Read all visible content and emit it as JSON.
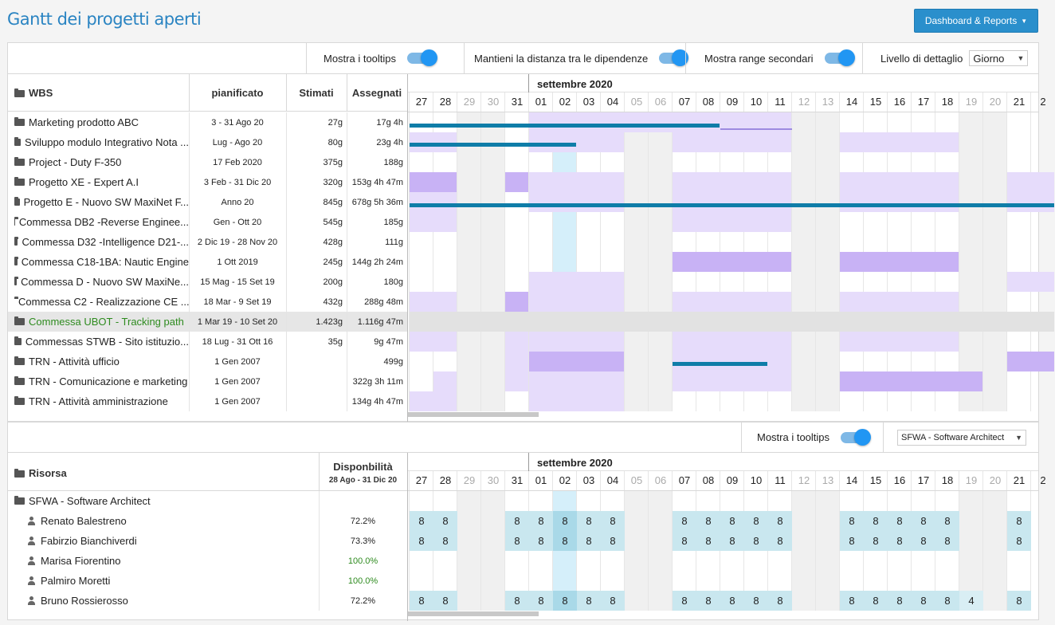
{
  "page_title": "Gantt dei progetti aperti",
  "dashboard_button": "Dashboard & Reports",
  "toolbar": {
    "tooltips_label": "Mostra i tooltips",
    "dependencies_label": "Mantieni la distanza tra le dipendenze",
    "secondary_range_label": "Mostra range secondari",
    "detail_level_label": "Livello di dettaglio",
    "detail_level_value": "Giorno"
  },
  "wbs_table": {
    "headers": {
      "wbs": "WBS",
      "planned": "pianificato",
      "estimated": "Stimati",
      "assigned": "Assegnati"
    },
    "rows": [
      {
        "name": "Marketing prodotto ABC",
        "planned": "3 - 31 Ago 20",
        "estimated": "27g",
        "assigned": "17g 4h"
      },
      {
        "name": "Sviluppo modulo Integrativo Nota ...",
        "planned": "Lug - Ago 20",
        "estimated": "80g",
        "assigned": "23g 4h"
      },
      {
        "name": "Project - Duty F-350",
        "planned": "17 Feb 2020",
        "estimated": "375g",
        "assigned": "188g"
      },
      {
        "name": "Progetto XE - Expert A.I",
        "planned": "3 Feb - 31 Dic 20",
        "estimated": "320g",
        "assigned": "153g 4h 47m"
      },
      {
        "name": "Progetto E - Nuovo SW MaxiNet F...",
        "planned": "Anno 20",
        "estimated": "845g",
        "assigned": "678g 5h 36m"
      },
      {
        "name": "Commessa DB2 -Reverse Enginee...",
        "planned": "Gen - Ott 20",
        "estimated": "545g",
        "assigned": "185g"
      },
      {
        "name": "Commessa D32 -Intelligence D21-...",
        "planned": "2 Dic 19 - 28 Nov 20",
        "estimated": "428g",
        "assigned": "111g"
      },
      {
        "name": "Commessa C18-1BA: Nautic Engine",
        "planned": "1 Ott 2019",
        "estimated": "245g",
        "assigned": "144g 2h 24m"
      },
      {
        "name": "Commessa D - Nuovo SW MaxiNe...",
        "planned": "15 Mag - 15 Set 19",
        "estimated": "200g",
        "assigned": "180g"
      },
      {
        "name": "Commessa C2 - Realizzazione CE ...",
        "planned": "18 Mar - 9 Set 19",
        "estimated": "432g",
        "assigned": "288g 48m"
      },
      {
        "name": "Commessa UBOT - Tracking path",
        "planned": "1 Mar 19 - 10 Set 20",
        "estimated": "1.423g",
        "assigned": "1.116g 47m",
        "selected": true
      },
      {
        "name": "Commessas STWB - Sito istituzio...",
        "planned": "18 Lug - 31 Ott 16",
        "estimated": "35g",
        "assigned": "9g 47m"
      },
      {
        "name": "TRN - Attività ufficio",
        "planned": "1 Gen 2007",
        "estimated": "",
        "assigned": "499g"
      },
      {
        "name": "TRN - Comunicazione e marketing",
        "planned": "1 Gen 2007",
        "estimated": "",
        "assigned": "322g 3h 11m"
      },
      {
        "name": "TRN - Attività amministrazione",
        "planned": "1 Gen 2007",
        "estimated": "",
        "assigned": "134g 4h 47m"
      }
    ]
  },
  "month_label": "settembre 2020",
  "days": [
    "27",
    "28",
    "29",
    "30",
    "31",
    "01",
    "02",
    "03",
    "04",
    "05",
    "06",
    "07",
    "08",
    "09",
    "10",
    "11",
    "12",
    "13",
    "14",
    "15",
    "16",
    "17",
    "18",
    "19",
    "20",
    "21",
    "2"
  ],
  "weekend_indexes": [
    2,
    3,
    9,
    10,
    16,
    17,
    23,
    24
  ],
  "today_index": 6,
  "resources_toolbar": {
    "tooltips_label": "Mostra i tooltips",
    "role_select": "SFWA - Software Architect"
  },
  "resources_table": {
    "headers": {
      "resource": "Risorsa",
      "availability": "Disponbilità",
      "availability_range": "28 Ago - 31 Dic 20"
    },
    "group": "SFWA - Software Architect",
    "rows": [
      {
        "name": "Renato Balestreno",
        "availability": "72.2%",
        "hours": [
          "8",
          "8",
          "",
          "",
          "8",
          "8",
          "8",
          "8",
          "8",
          "",
          "",
          "8",
          "8",
          "8",
          "8",
          "8",
          "",
          "",
          "8",
          "8",
          "8",
          "8",
          "8",
          "",
          "",
          "8"
        ]
      },
      {
        "name": "Fabirzio Bianchiverdi",
        "availability": "73.3%",
        "hours": [
          "8",
          "8",
          "",
          "",
          "8",
          "8",
          "8",
          "8",
          "8",
          "",
          "",
          "8",
          "8",
          "8",
          "8",
          "8",
          "",
          "",
          "8",
          "8",
          "8",
          "8",
          "8",
          "",
          "",
          "8"
        ]
      },
      {
        "name": "Marisa Fiorentino",
        "availability": "100.0%",
        "hours": []
      },
      {
        "name": "Palmiro Moretti",
        "availability": "100.0%",
        "hours": []
      },
      {
        "name": "Bruno Rossierosso",
        "availability": "72.2%",
        "hours": [
          "8",
          "8",
          "",
          "",
          "8",
          "8",
          "8",
          "8",
          "8",
          "",
          "",
          "8",
          "8",
          "8",
          "8",
          "8",
          "",
          "",
          "8",
          "8",
          "8",
          "8",
          "8",
          "4",
          "",
          "8"
        ]
      }
    ]
  },
  "colors": {
    "accent": "#2a84c2",
    "bar_light": "#e6dcfb",
    "bar_dark": "#c8b2f5",
    "line": "#0f7da8",
    "hours_bg": "#c9e7ef",
    "today": "#d5effa",
    "green": "#2e8b1f"
  }
}
